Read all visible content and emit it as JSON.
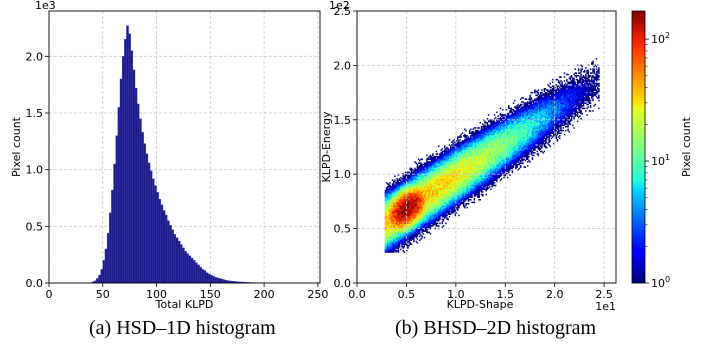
{
  "chart_data": [
    {
      "type": "bar",
      "caption": "(a) HSD–1D histogram",
      "xlabel": "Total KLPD",
      "ylabel": "Pixel count",
      "y_multiplier": "1e3",
      "xlim": [
        0,
        252
      ],
      "ylim": [
        0,
        2.4
      ],
      "xticks": [
        0,
        50,
        100,
        150,
        200,
        250
      ],
      "yticks": [
        0.0,
        0.5,
        1.0,
        1.5,
        2.0
      ],
      "grid": true,
      "bar_color": "#1c1c8c",
      "bin_width": 2,
      "x": [
        40,
        42,
        44,
        46,
        48,
        50,
        52,
        54,
        56,
        58,
        60,
        62,
        64,
        66,
        68,
        70,
        72,
        74,
        76,
        78,
        80,
        82,
        84,
        86,
        88,
        90,
        92,
        94,
        96,
        98,
        100,
        102,
        104,
        106,
        108,
        110,
        112,
        114,
        116,
        118,
        120,
        122,
        124,
        126,
        128,
        130,
        132,
        134,
        136,
        138,
        140,
        142,
        144,
        146,
        148,
        150,
        152,
        154,
        156,
        158,
        160,
        162,
        164,
        166,
        168,
        170,
        172,
        174,
        176,
        178,
        180,
        182,
        184,
        186,
        188,
        190,
        192,
        194,
        196,
        198,
        200,
        202,
        204,
        206,
        208,
        210,
        212,
        214,
        216,
        218,
        220,
        222,
        224,
        226,
        228,
        230,
        232,
        234,
        236,
        238,
        240
      ],
      "values": [
        0.01,
        0.02,
        0.04,
        0.07,
        0.12,
        0.2,
        0.3,
        0.44,
        0.62,
        0.82,
        1.05,
        1.3,
        1.55,
        1.8,
        2.0,
        2.15,
        2.27,
        2.2,
        2.05,
        1.88,
        1.72,
        1.58,
        1.45,
        1.33,
        1.23,
        1.14,
        1.06,
        0.99,
        0.92,
        0.86,
        0.8,
        0.74,
        0.69,
        0.64,
        0.6,
        0.55,
        0.51,
        0.47,
        0.43,
        0.4,
        0.37,
        0.34,
        0.31,
        0.28,
        0.26,
        0.24,
        0.22,
        0.2,
        0.18,
        0.16,
        0.14,
        0.12,
        0.11,
        0.09,
        0.08,
        0.07,
        0.06,
        0.05,
        0.045,
        0.04,
        0.035,
        0.03,
        0.025,
        0.02,
        0.018,
        0.016,
        0.014,
        0.012,
        0.01,
        0.009,
        0.008,
        0.007,
        0.006,
        0.005,
        0.004,
        0.004,
        0.003,
        0.003,
        0.002,
        0.002,
        0.002,
        0.001,
        0.001,
        0.001,
        0.001,
        0.001,
        0.001,
        0.001,
        0.001,
        0.001,
        0.001,
        0.001,
        0.001,
        0.001,
        0.001,
        0.001,
        0.001,
        0.001,
        0.001,
        0.001,
        0.001
      ]
    },
    {
      "type": "heatmap",
      "caption": "(b) BHSD–2D histogram",
      "xlabel": "KLPD-Shape",
      "ylabel": "KLPD-Energy",
      "x_multiplier": "1e1",
      "y_multiplier": "1e2",
      "xlim": [
        0,
        2.62
      ],
      "ylim": [
        0,
        2.5
      ],
      "xticks": [
        0.0,
        0.5,
        1.0,
        1.5,
        2.0,
        2.5
      ],
      "yticks": [
        0.0,
        0.5,
        1.0,
        1.5,
        2.0,
        2.5
      ],
      "grid": true,
      "colormap": "jet",
      "color_scale": "log",
      "colorbar": {
        "label": "Pixel count",
        "range": [
          1,
          170
        ],
        "ticks": [
          {
            "value": 1,
            "base": "10",
            "exp": "0"
          },
          {
            "value": 10,
            "base": "10",
            "exp": "1"
          },
          {
            "value": 100,
            "base": "10",
            "exp": "2"
          }
        ]
      },
      "density": {
        "peak": {
          "x": 0.5,
          "y": 0.68,
          "count": 170
        },
        "spread": {
          "sx": 0.11,
          "sy": 0.1,
          "rho": 0.5
        },
        "tail": {
          "slope": 0.6,
          "sx": 0.4,
          "sy": 0.11,
          "weight": 0.05
        }
      }
    }
  ]
}
